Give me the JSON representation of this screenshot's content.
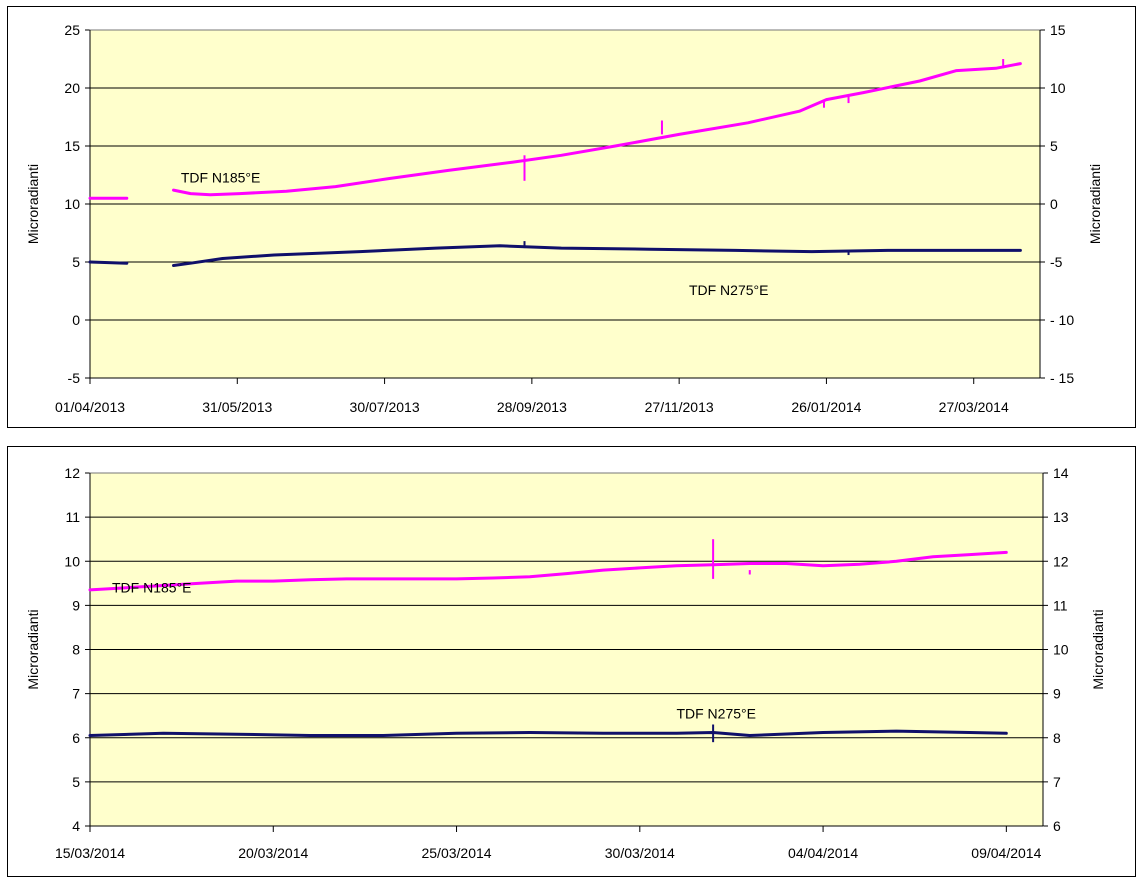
{
  "chart_data": [
    {
      "type": "line",
      "ylabel": "Microradianti",
      "y2label": "Microradianti",
      "xlim": [
        "2013-04-01",
        "2014-04-23"
      ],
      "ylim": [
        -5,
        25
      ],
      "y2lim": [
        -15,
        15
      ],
      "yticks": [
        "25",
        "20",
        "15",
        "10",
        "5",
        "0",
        "-5"
      ],
      "y2ticks": [
        "15",
        "10",
        "5",
        "0",
        "-5",
        "- 10",
        "- 15"
      ],
      "xticks": [
        {
          "date": "2013-04-01",
          "label": "01/04/2013"
        },
        {
          "date": "2013-05-31",
          "label": "31/05/2013"
        },
        {
          "date": "2013-07-30",
          "label": "30/07/2013"
        },
        {
          "date": "2013-09-28",
          "label": "28/09/2013"
        },
        {
          "date": "2013-11-27",
          "label": "27/11/2013"
        },
        {
          "date": "2014-01-26",
          "label": "26/01/2014"
        },
        {
          "date": "2014-03-27",
          "label": "27/03/2014"
        }
      ],
      "grid": true,
      "plot_background": "#ffffcc",
      "series": [
        {
          "name": "TDF N185°E",
          "color": "#ff00ff",
          "axis": "left",
          "segments": [
            [
              [
                "2013-04-01",
                10.5
              ],
              [
                "2013-04-16",
                10.5
              ]
            ],
            [
              [
                "2013-05-05",
                11.2
              ],
              [
                "2013-05-12",
                10.9
              ],
              [
                "2013-05-20",
                10.8
              ],
              [
                "2013-06-01",
                10.9
              ],
              [
                "2013-06-20",
                11.1
              ],
              [
                "2013-07-10",
                11.5
              ],
              [
                "2013-08-01",
                12.2
              ],
              [
                "2013-08-25",
                12.9
              ],
              [
                "2013-09-20",
                13.6
              ],
              [
                "2013-10-10",
                14.2
              ],
              [
                "2013-11-01",
                15.0
              ],
              [
                "2013-11-27",
                16.0
              ],
              [
                "2013-12-25",
                17.0
              ],
              [
                "2014-01-15",
                18.0
              ],
              [
                "2014-01-26",
                19.0
              ],
              [
                "2014-02-10",
                19.6
              ],
              [
                "2014-03-05",
                20.6
              ],
              [
                "2014-03-20",
                21.5
              ],
              [
                "2014-04-05",
                21.7
              ],
              [
                "2014-04-15",
                22.1
              ]
            ]
          ],
          "spikes": [
            [
              "2013-09-25",
              12.0,
              14.2
            ],
            [
              "2013-11-20",
              17.2,
              16.0
            ],
            [
              "2014-01-25",
              18.3,
              19.0
            ],
            [
              "2014-02-04",
              18.7,
              19.4
            ],
            [
              "2014-04-08",
              22.5,
              21.7
            ]
          ]
        },
        {
          "name": "TDF N275°E",
          "color": "#10106a",
          "axis": "left",
          "segments": [
            [
              [
                "2013-04-01",
                5.0
              ],
              [
                "2013-04-16",
                4.9
              ]
            ],
            [
              [
                "2013-05-05",
                4.7
              ],
              [
                "2013-05-12",
                4.9
              ],
              [
                "2013-05-25",
                5.3
              ],
              [
                "2013-06-15",
                5.6
              ],
              [
                "2013-07-20",
                5.9
              ],
              [
                "2013-08-20",
                6.2
              ],
              [
                "2013-09-15",
                6.4
              ],
              [
                "2013-10-10",
                6.2
              ],
              [
                "2013-11-15",
                6.1
              ],
              [
                "2013-12-20",
                6.0
              ],
              [
                "2014-01-20",
                5.9
              ],
              [
                "2014-02-20",
                6.0
              ],
              [
                "2014-03-20",
                6.0
              ],
              [
                "2014-04-15",
                6.0
              ]
            ]
          ],
          "spikes": [
            [
              "2013-09-25",
              6.8,
              6.2
            ],
            [
              "2014-02-04",
              5.6,
              6.0
            ]
          ]
        }
      ],
      "annotations": [
        {
          "text": "TDF N185°E",
          "x": "2013-05-08",
          "y": 12.3
        },
        {
          "text": "TDF N275°E",
          "x": "2013-12-01",
          "y": 2.6
        }
      ]
    },
    {
      "type": "line",
      "ylabel": "Microradianti",
      "y2label": "Microradianti",
      "xlim": [
        "2014-03-15",
        "2014-04-10"
      ],
      "ylim": [
        4,
        12
      ],
      "y2lim": [
        6,
        14
      ],
      "yticks": [
        "12",
        "11",
        "10",
        "9",
        "8",
        "7",
        "6",
        "5",
        "4"
      ],
      "y2ticks": [
        "14",
        "13",
        "12",
        "11",
        "10",
        "9",
        "8",
        "7",
        "6"
      ],
      "xticks": [
        {
          "date": "2014-03-15",
          "label": "15/03/2014"
        },
        {
          "date": "2014-03-20",
          "label": "20/03/2014"
        },
        {
          "date": "2014-03-25",
          "label": "25/03/2014"
        },
        {
          "date": "2014-03-30",
          "label": "30/03/2014"
        },
        {
          "date": "2014-04-04",
          "label": "04/04/2014"
        },
        {
          "date": "2014-04-09",
          "label": "09/04/2014"
        }
      ],
      "grid": true,
      "plot_background": "#ffffcc",
      "series": [
        {
          "name": "TDF N185°E",
          "color": "#ff00ff",
          "axis": "left",
          "segments": [
            [
              [
                "2014-03-15",
                9.35
              ],
              [
                "2014-03-16",
                9.4
              ],
              [
                "2014-03-17",
                9.45
              ],
              [
                "2014-03-18",
                9.5
              ],
              [
                "2014-03-19",
                9.55
              ],
              [
                "2014-03-20",
                9.55
              ],
              [
                "2014-03-21",
                9.58
              ],
              [
                "2014-03-22",
                9.6
              ],
              [
                "2014-03-23",
                9.6
              ],
              [
                "2014-03-24",
                9.6
              ],
              [
                "2014-03-25",
                9.6
              ],
              [
                "2014-03-26",
                9.62
              ],
              [
                "2014-03-27",
                9.65
              ],
              [
                "2014-03-28",
                9.72
              ],
              [
                "2014-03-29",
                9.8
              ],
              [
                "2014-03-30",
                9.85
              ],
              [
                "2014-03-31",
                9.9
              ],
              [
                "2014-04-01",
                9.92
              ],
              [
                "2014-04-02",
                9.95
              ],
              [
                "2014-04-03",
                9.95
              ],
              [
                "2014-04-04",
                9.9
              ],
              [
                "2014-04-05",
                9.93
              ],
              [
                "2014-04-06",
                10.0
              ],
              [
                "2014-04-07",
                10.1
              ],
              [
                "2014-04-08",
                10.15
              ],
              [
                "2014-04-09",
                10.2
              ]
            ]
          ],
          "spikes": [
            [
              "2014-04-01",
              10.5,
              9.6
            ],
            [
              "2014-04-02",
              9.8,
              9.7
            ]
          ]
        },
        {
          "name": "TDF N275°E",
          "color": "#10106a",
          "axis": "left",
          "segments": [
            [
              [
                "2014-03-15",
                6.05
              ],
              [
                "2014-03-17",
                6.1
              ],
              [
                "2014-03-19",
                6.08
              ],
              [
                "2014-03-21",
                6.05
              ],
              [
                "2014-03-23",
                6.05
              ],
              [
                "2014-03-25",
                6.1
              ],
              [
                "2014-03-27",
                6.12
              ],
              [
                "2014-03-29",
                6.1
              ],
              [
                "2014-03-31",
                6.1
              ],
              [
                "2014-04-01",
                6.12
              ],
              [
                "2014-04-02",
                6.05
              ],
              [
                "2014-04-04",
                6.12
              ],
              [
                "2014-04-06",
                6.15
              ],
              [
                "2014-04-08",
                6.12
              ],
              [
                "2014-04-09",
                6.1
              ]
            ]
          ],
          "spikes": [
            [
              "2014-04-01",
              6.3,
              5.9
            ]
          ]
        }
      ],
      "annotations": [
        {
          "text": "TDF N185°E",
          "x": "2014-03-15",
          "y": 9.4
        },
        {
          "text": "TDF N275°E",
          "x": "2014-03-31",
          "y": 6.55
        }
      ]
    }
  ]
}
